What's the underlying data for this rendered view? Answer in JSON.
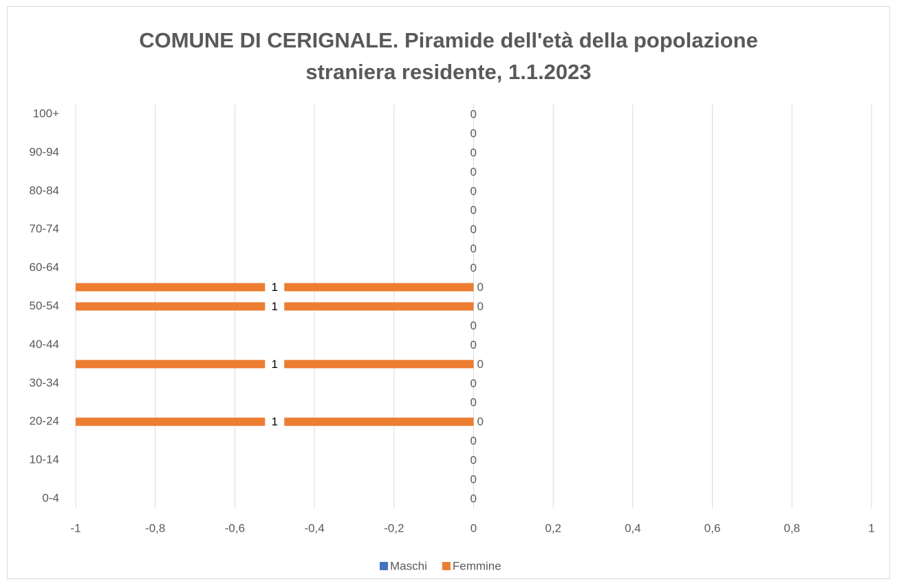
{
  "chart_data": {
    "type": "bar",
    "orientation": "horizontal",
    "title": "COMUNE DI CERIGNALE. Piramide dell'età della popolazione straniera residente, 1.1.2023",
    "categories": [
      "0-4",
      null,
      "10-14",
      null,
      "20-24",
      null,
      "30-34",
      null,
      "40-44",
      null,
      "50-54",
      null,
      "60-64",
      null,
      "70-74",
      null,
      "80-84",
      null,
      "90-94",
      null,
      "100+"
    ],
    "series": [
      {
        "name": "Maschi",
        "color": "#4472c4",
        "values": [
          0,
          0,
          0,
          0,
          0,
          0,
          0,
          0,
          0,
          0,
          0,
          0,
          0,
          0,
          0,
          0,
          0,
          0,
          0,
          0,
          0
        ]
      },
      {
        "name": "Femmine",
        "color": "#ed7d31",
        "values": [
          0,
          0,
          0,
          0,
          -1,
          0,
          0,
          -1,
          0,
          0,
          -1,
          -1,
          0,
          0,
          0,
          0,
          0,
          0,
          0,
          0,
          0
        ],
        "value_labels": [
          null,
          null,
          null,
          null,
          "1",
          null,
          null,
          "1",
          null,
          null,
          "1",
          "1",
          null,
          null,
          null,
          null,
          null,
          null,
          null,
          null,
          null
        ]
      }
    ],
    "xlim": [
      -1,
      1
    ],
    "xticks": [
      -1,
      {
        "value": -0.8,
        "label": "-0,8"
      },
      {
        "value": -0.6,
        "label": "-0,6"
      },
      {
        "value": -0.4,
        "label": "-0,4"
      },
      {
        "value": -0.2,
        "label": "-0,2"
      },
      0,
      {
        "value": 0.2,
        "label": "0,2"
      },
      {
        "value": 0.4,
        "label": "0,4"
      },
      {
        "value": 0.6,
        "label": "0,6"
      },
      {
        "value": 0.8,
        "label": "0,8"
      },
      1
    ],
    "grid": true,
    "legend": "bottom"
  }
}
